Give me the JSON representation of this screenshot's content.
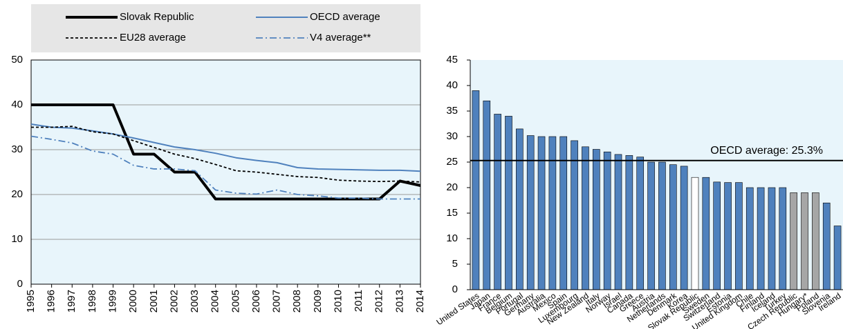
{
  "chart_data": [
    {
      "type": "line",
      "x": [
        "1995",
        "1996",
        "1997",
        "1998",
        "1999",
        "2000",
        "2001",
        "2002",
        "2003",
        "2004",
        "2005",
        "2006",
        "2007",
        "2008",
        "2009",
        "2010",
        "2011",
        "2012",
        "2013",
        "2014"
      ],
      "series": [
        {
          "name": "Slovak Republic",
          "color": "#000000",
          "style": "thick",
          "values": [
            40,
            40,
            40,
            40,
            40,
            29,
            29,
            25,
            25,
            19,
            19,
            19,
            19,
            19,
            19,
            19,
            19,
            19,
            23,
            22
          ]
        },
        {
          "name": "OECD average",
          "color": "#4f81bd",
          "style": "solid",
          "values": [
            35.7,
            35,
            34.8,
            34.2,
            33.5,
            32.6,
            31.6,
            30.6,
            30,
            29.2,
            28.2,
            27.6,
            27.1,
            26,
            25.7,
            25.6,
            25.5,
            25.4,
            25.4,
            25.2
          ]
        },
        {
          "name": "EU28 average",
          "color": "#000000",
          "style": "dashed",
          "values": [
            35,
            35,
            35.2,
            34,
            33.5,
            32,
            30.5,
            29,
            28,
            26.7,
            25.3,
            25,
            24.5,
            24,
            23.8,
            23.2,
            23,
            22.9,
            23,
            22.8
          ]
        },
        {
          "name": "V4 average**",
          "color": "#4f81bd",
          "style": "dashdot",
          "values": [
            33,
            32.3,
            31.5,
            29.7,
            29,
            26.5,
            25.7,
            25.7,
            25.3,
            21,
            20.3,
            20.1,
            21,
            20,
            19.7,
            19.2,
            19.2,
            19,
            19,
            19
          ]
        }
      ],
      "ylim": [
        0,
        50
      ],
      "yticks": [
        0,
        10,
        20,
        30,
        40,
        50
      ],
      "grid": true
    },
    {
      "type": "bar",
      "categories": [
        "United States",
        "Japan",
        "France",
        "Belgium",
        "Portugal",
        "Germany",
        "Australia",
        "Mexico",
        "Spain",
        "Luxembourg",
        "New Zealand",
        "Italy",
        "Norway",
        "Israel",
        "Canada",
        "Greece",
        "Austria",
        "Netherlands",
        "Denmark",
        "Korea",
        "Slovak Republic",
        "Sweden",
        "Switzerland",
        "Estonia",
        "United Kingdom",
        "Chile",
        "Finland",
        "Iceland",
        "Turkey",
        "Czech Republic",
        "Hungary*",
        "Poland",
        "Slovenia",
        "Ireland"
      ],
      "values": [
        39,
        37,
        34.4,
        34,
        31.5,
        30.2,
        30,
        30,
        30,
        29.2,
        28,
        27.5,
        27,
        26.5,
        26.3,
        26,
        25,
        25,
        24.5,
        24.2,
        22,
        22,
        21.1,
        21,
        21,
        20,
        20,
        20,
        20,
        19,
        19,
        19,
        17,
        12.5
      ],
      "colors": [
        "#4f81bd",
        "#4f81bd",
        "#4f81bd",
        "#4f81bd",
        "#4f81bd",
        "#4f81bd",
        "#4f81bd",
        "#4f81bd",
        "#4f81bd",
        "#4f81bd",
        "#4f81bd",
        "#4f81bd",
        "#4f81bd",
        "#4f81bd",
        "#4f81bd",
        "#4f81bd",
        "#4f81bd",
        "#4f81bd",
        "#4f81bd",
        "#4f81bd",
        "#ffffff",
        "#4f81bd",
        "#4f81bd",
        "#4f81bd",
        "#4f81bd",
        "#4f81bd",
        "#4f81bd",
        "#4f81bd",
        "#4f81bd",
        "#a6a6a6",
        "#a6a6a6",
        "#a6a6a6",
        "#4f81bd",
        "#4f81bd"
      ],
      "reference_line": {
        "value": 25.3,
        "label": "OECD average: 25.3%"
      },
      "ylim": [
        0,
        45
      ],
      "yticks": [
        0,
        5,
        10,
        15,
        20,
        25,
        30,
        35,
        40,
        45
      ],
      "grid": false
    }
  ]
}
